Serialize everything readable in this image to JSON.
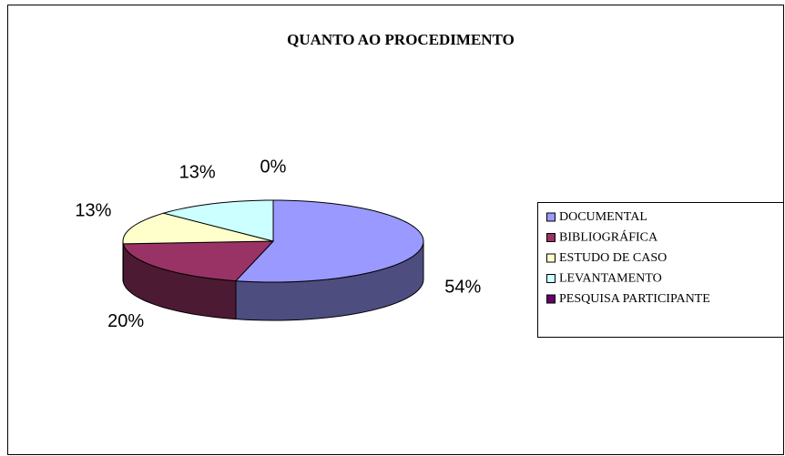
{
  "chart_data": {
    "type": "pie",
    "title": "QUANTO AO PROCEDIMENTO",
    "categories": [
      "DOCUMENTAL",
      "BIBLIOGRÁFICA",
      "ESTUDO DE CASO",
      "LEVANTAMENTO",
      "PESQUISA PARTICIPANTE"
    ],
    "values": [
      54,
      20,
      13,
      13,
      0
    ],
    "value_labels": [
      "54%",
      "20%",
      "13%",
      "13%",
      "0%"
    ],
    "colors": [
      "#9999ff",
      "#993366",
      "#ffffcc",
      "#ccffff",
      "#660066"
    ],
    "legend": "right"
  }
}
